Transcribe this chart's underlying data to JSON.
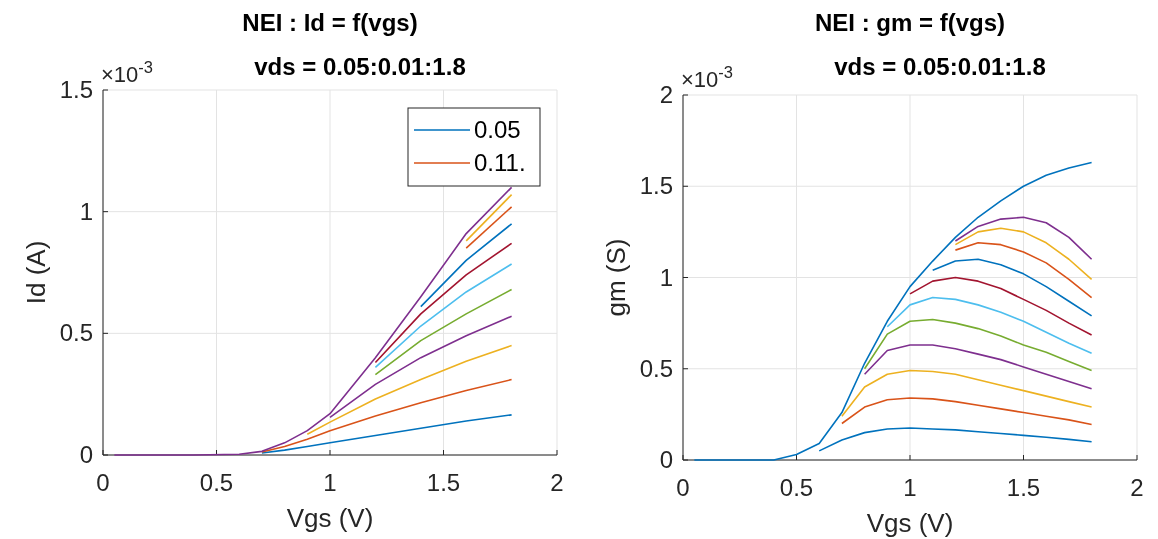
{
  "chart_data": [
    {
      "type": "line",
      "title": "NEI : Id = f(vgs)",
      "subtitle": "vds = 0.05:0.01:1.8",
      "xlabel": "Vgs (V)",
      "ylabel": "Id (A)",
      "annotations": [
        "×10$^{-3}$"
      ],
      "x": [
        0.05,
        0.4,
        0.6,
        0.7,
        0.8,
        0.9,
        1.0,
        1.2,
        1.4,
        1.6,
        1.8
      ],
      "xlim": [
        0,
        2
      ],
      "xticks": [
        0,
        0.5,
        1,
        1.5,
        2
      ],
      "ylim": [
        0,
        1.5
      ],
      "yticks": [
        0,
        0.5,
        1,
        1.5
      ],
      "grid": true,
      "legend": "top right",
      "series": [
        {
          "name": "0.05",
          "color": "#0072bd",
          "values": [
            null,
            null,
            null,
            0.008,
            0.02,
            0.035,
            0.05,
            0.08,
            0.11,
            0.14,
            0.165
          ]
        },
        {
          "name": "0.11.",
          "color": "#d95319",
          "values": [
            null,
            null,
            null,
            0.012,
            0.035,
            0.065,
            0.1,
            0.16,
            0.215,
            0.265,
            0.31
          ]
        },
        {
          "color": "#edb120",
          "values": [
            null,
            null,
            null,
            null,
            null,
            0.085,
            0.135,
            0.23,
            0.31,
            0.385,
            0.45
          ]
        },
        {
          "color": "#7e2f8e",
          "values": [
            null,
            null,
            null,
            null,
            null,
            null,
            0.155,
            0.29,
            0.4,
            0.49,
            0.57
          ]
        },
        {
          "color": "#77ac30",
          "values": [
            null,
            null,
            null,
            null,
            null,
            null,
            null,
            0.33,
            0.47,
            0.58,
            0.68
          ]
        },
        {
          "color": "#4dbeee",
          "values": [
            null,
            null,
            null,
            null,
            null,
            null,
            null,
            0.36,
            0.53,
            0.67,
            0.785
          ]
        },
        {
          "color": "#a2142f",
          "values": [
            null,
            null,
            null,
            null,
            null,
            null,
            null,
            0.38,
            0.58,
            0.74,
            0.87
          ]
        },
        {
          "color": "#0072bd",
          "values": [
            null,
            null,
            null,
            null,
            null,
            null,
            null,
            null,
            0.61,
            0.8,
            0.95
          ]
        },
        {
          "color": "#d95319",
          "values": [
            null,
            null,
            null,
            null,
            null,
            null,
            null,
            null,
            null,
            0.85,
            1.02
          ]
        },
        {
          "color": "#edb120",
          "values": [
            null,
            null,
            null,
            null,
            null,
            null,
            null,
            null,
            null,
            0.88,
            1.07
          ]
        },
        {
          "color": "#7e2f8e",
          "values": [
            0,
            0,
            0.003,
            0.015,
            0.05,
            0.1,
            0.17,
            0.4,
            0.65,
            0.91,
            1.1
          ]
        }
      ]
    },
    {
      "type": "line",
      "title": "NEI : gm = f(vgs)",
      "subtitle": "vds = 0.05:0.01:1.8",
      "xlabel": "Vgs (V)",
      "ylabel": "gm (S)",
      "annotations": [
        "×10$^{-3}$"
      ],
      "x": [
        0.05,
        0.4,
        0.5,
        0.6,
        0.7,
        0.8,
        0.9,
        1.0,
        1.1,
        1.2,
        1.3,
        1.4,
        1.5,
        1.6,
        1.7,
        1.8
      ],
      "xlim": [
        0,
        2
      ],
      "xticks": [
        0,
        0.5,
        1,
        1.5,
        2
      ],
      "ylim": [
        0,
        2
      ],
      "yticks": [
        0,
        0.5,
        1,
        1.5,
        2
      ],
      "grid": true,
      "series": [
        {
          "color": "#0072bd",
          "values": [
            null,
            null,
            null,
            0.05,
            0.11,
            0.15,
            0.17,
            0.175,
            0.17,
            0.165,
            0.155,
            0.145,
            0.135,
            0.125,
            0.113,
            0.1
          ]
        },
        {
          "color": "#d95319",
          "values": [
            null,
            null,
            null,
            null,
            0.2,
            0.29,
            0.33,
            0.34,
            0.335,
            0.32,
            0.3,
            0.28,
            0.26,
            0.24,
            0.22,
            0.195
          ]
        },
        {
          "color": "#edb120",
          "values": [
            null,
            null,
            null,
            null,
            0.24,
            0.4,
            0.47,
            0.49,
            0.485,
            0.47,
            0.44,
            0.41,
            0.38,
            0.35,
            0.32,
            0.29
          ]
        },
        {
          "color": "#7e2f8e",
          "values": [
            null,
            null,
            null,
            null,
            null,
            0.47,
            0.6,
            0.63,
            0.63,
            0.61,
            0.58,
            0.55,
            0.51,
            0.47,
            0.43,
            0.39
          ]
        },
        {
          "color": "#77ac30",
          "values": [
            null,
            null,
            null,
            null,
            null,
            0.5,
            0.69,
            0.76,
            0.77,
            0.75,
            0.72,
            0.68,
            0.63,
            0.59,
            0.54,
            0.49
          ]
        },
        {
          "color": "#4dbeee",
          "values": [
            null,
            null,
            null,
            null,
            null,
            null,
            0.73,
            0.85,
            0.89,
            0.88,
            0.85,
            0.81,
            0.76,
            0.7,
            0.64,
            0.585
          ]
        },
        {
          "color": "#a2142f",
          "values": [
            null,
            null,
            null,
            null,
            null,
            null,
            null,
            0.91,
            0.98,
            1.0,
            0.98,
            0.94,
            0.88,
            0.82,
            0.75,
            0.685
          ]
        },
        {
          "color": "#0072bd",
          "values": [
            null,
            null,
            null,
            null,
            null,
            null,
            null,
            null,
            1.04,
            1.09,
            1.1,
            1.07,
            1.02,
            0.95,
            0.87,
            0.79
          ]
        },
        {
          "color": "#d95319",
          "values": [
            null,
            null,
            null,
            null,
            null,
            null,
            null,
            null,
            null,
            1.15,
            1.19,
            1.18,
            1.14,
            1.08,
            0.99,
            0.89
          ]
        },
        {
          "color": "#edb120",
          "values": [
            null,
            null,
            null,
            null,
            null,
            null,
            null,
            null,
            null,
            1.18,
            1.25,
            1.27,
            1.25,
            1.19,
            1.1,
            0.99
          ]
        },
        {
          "color": "#7e2f8e",
          "values": [
            null,
            null,
            null,
            null,
            null,
            null,
            null,
            null,
            null,
            1.2,
            1.28,
            1.32,
            1.33,
            1.3,
            1.22,
            1.1
          ]
        },
        {
          "color": "#0072bd",
          "values": [
            0,
            0,
            0.03,
            0.09,
            0.26,
            0.53,
            0.76,
            0.95,
            1.09,
            1.22,
            1.33,
            1.42,
            1.5,
            1.56,
            1.6,
            1.63
          ]
        }
      ]
    }
  ]
}
